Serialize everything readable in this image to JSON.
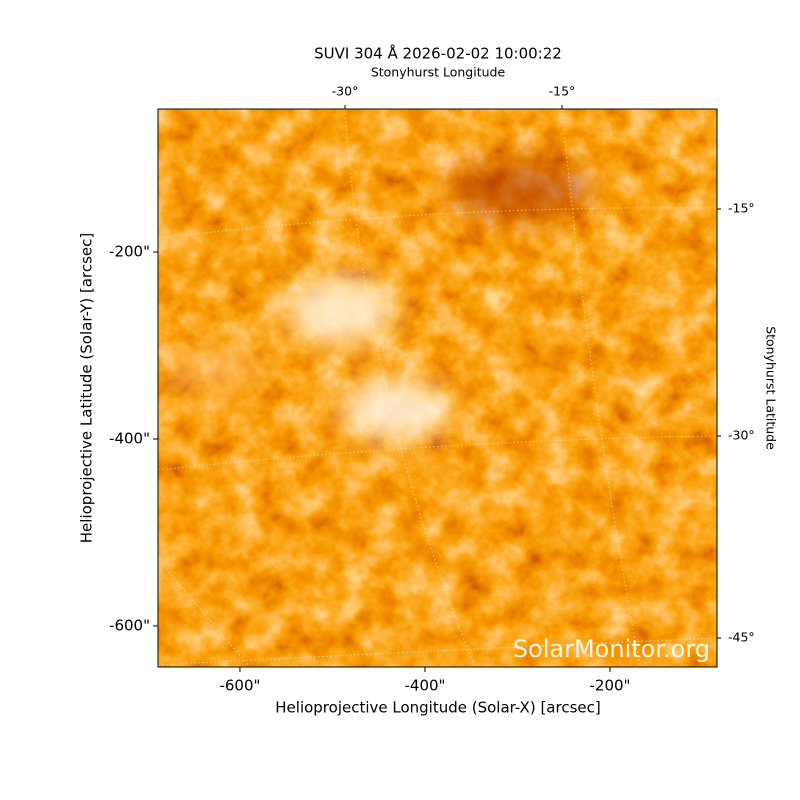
{
  "chart_data": {
    "type": "image",
    "title": "SUVI 304 Å 2026-02-02 10:00:22",
    "x_label": "Helioprojective Longitude (Solar-X) [arcsec]",
    "y_label": "Helioprojective Latitude (Solar-Y) [arcsec]",
    "top_label": "Stonyhurst Longitude",
    "right_label": "Stonyhurst Latitude",
    "watermark": "SolarMonitor.org",
    "xlim": [
      -688.6,
      -84.3
    ],
    "ylim": [
      -643.9,
      -47
    ],
    "xticks": [
      {
        "value": -600,
        "label": "-600\""
      },
      {
        "value": -400,
        "label": "-400\""
      },
      {
        "value": -200,
        "label": "-200\""
      }
    ],
    "yticks": [
      {
        "value": -200,
        "label": "-200\""
      },
      {
        "value": -400,
        "label": "-400\""
      },
      {
        "value": -600,
        "label": "-600\""
      }
    ],
    "top_ticks": [
      {
        "value": -30,
        "label": "-30°"
      },
      {
        "value": -15,
        "label": "-15°"
      }
    ],
    "right_ticks": [
      {
        "value": -15,
        "label": "-15°"
      },
      {
        "value": -30,
        "label": "-30°"
      },
      {
        "value": -45,
        "label": "-45°"
      }
    ]
  }
}
